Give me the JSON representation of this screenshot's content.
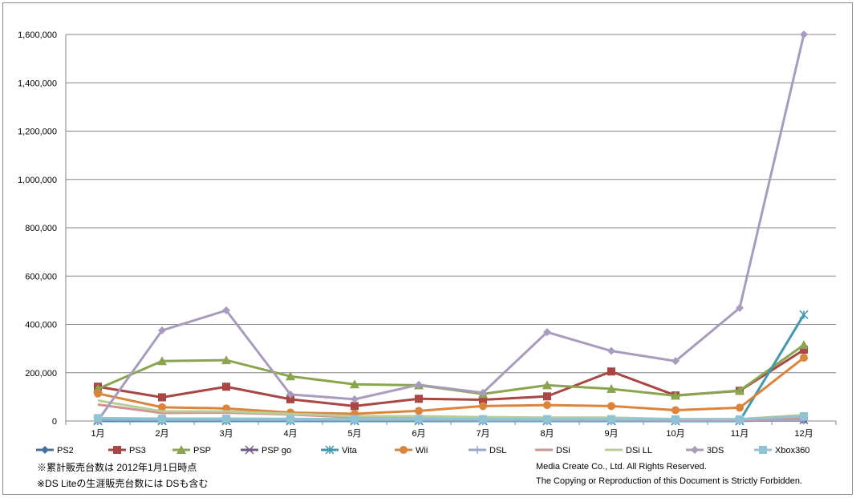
{
  "chart_data": {
    "type": "line",
    "categories": [
      "1月",
      "2月",
      "3月",
      "4月",
      "5月",
      "6月",
      "7月",
      "8月",
      "9月",
      "10月",
      "11月",
      "12月"
    ],
    "ylim": [
      0,
      1600000
    ],
    "yticks": [
      "0",
      "200,000",
      "400,000",
      "600,000",
      "800,000",
      "1,000,000",
      "1,200,000",
      "1,400,000",
      "1,600,000"
    ],
    "grid": true,
    "legend": "bottom",
    "series": [
      {
        "name": "PS2",
        "color": "#4572a7",
        "marker": "diamond",
        "values": [
          3000,
          3000,
          3000,
          3000,
          2500,
          2500,
          2000,
          2000,
          2000,
          1500,
          1500,
          2000
        ]
      },
      {
        "name": "PS3",
        "color": "#aa4643",
        "marker": "square",
        "values": [
          142000,
          98000,
          142000,
          90000,
          62000,
          92000,
          88000,
          102000,
          205000,
          106000,
          125000,
          295000
        ]
      },
      {
        "name": "PSP",
        "color": "#89a54e",
        "marker": "triangle",
        "values": [
          133000,
          248000,
          252000,
          185000,
          152000,
          148000,
          112000,
          148000,
          133000,
          105000,
          126000,
          315000
        ]
      },
      {
        "name": "PSP go",
        "color": "#71588f",
        "marker": "x",
        "values": [
          2000,
          1500,
          1500,
          1000,
          1000,
          1000,
          800,
          800,
          800,
          500,
          500,
          5000
        ]
      },
      {
        "name": "Vita",
        "color": "#4198af",
        "marker": "star",
        "values": [
          0,
          0,
          0,
          0,
          0,
          0,
          0,
          0,
          0,
          0,
          0,
          440000
        ]
      },
      {
        "name": "Wii",
        "color": "#db843d",
        "marker": "circle",
        "values": [
          114000,
          57000,
          52000,
          35000,
          30000,
          42000,
          62000,
          66000,
          62000,
          45000,
          55000,
          262000
        ]
      },
      {
        "name": "DSL",
        "color": "#93a9cf",
        "marker": "plus",
        "values": [
          6000,
          5000,
          5000,
          4000,
          4000,
          4000,
          3000,
          3000,
          3000,
          2000,
          2000,
          3000
        ]
      },
      {
        "name": "DSi",
        "color": "#d19392",
        "marker": "none",
        "values": [
          68000,
          33000,
          35000,
          27000,
          15000,
          12000,
          10000,
          8000,
          8000,
          5000,
          5000,
          10000
        ]
      },
      {
        "name": "DSi LL",
        "color": "#b9cd96",
        "marker": "none",
        "values": [
          85000,
          40000,
          40000,
          30000,
          20000,
          20000,
          16000,
          14000,
          14000,
          8000,
          8000,
          25000
        ]
      },
      {
        "name": "3DS",
        "color": "#a99bbd",
        "marker": "diamond",
        "values": [
          2000,
          375000,
          458000,
          110000,
          90000,
          150000,
          117000,
          368000,
          290000,
          248000,
          468000,
          1600000
        ]
      },
      {
        "name": "Xbox360",
        "color": "#92c3d4",
        "marker": "square",
        "values": [
          12000,
          10000,
          10000,
          9000,
          8000,
          9000,
          8000,
          8000,
          8000,
          7000,
          7000,
          20000
        ]
      }
    ]
  },
  "notes": [
    "※累計販売台数は 2012年1月1日時点",
    "※DS Liteの生涯販売台数には DSも含む"
  ],
  "copyright": [
    "Media Create Co., Ltd.  All Rights Reserved.",
    "The Copying or Reproduction of this Document  is Strictly Forbidden."
  ]
}
